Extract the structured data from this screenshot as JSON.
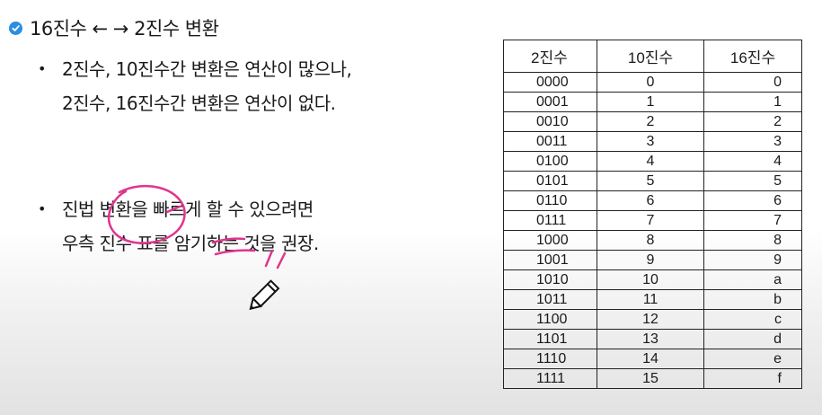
{
  "title": "16진수 ← → 2진수 변환",
  "bullets": [
    {
      "lines": [
        "2진수, 10진수간 변환은 연산이 많으나,",
        "2진수, 16진수간 변환은 연산이 없다."
      ]
    },
    {
      "lines": [
        "진법 변환을 빠르게 할 수 있으려면",
        "우측 진수 표를 암기하는 것을 권장."
      ]
    }
  ],
  "table": {
    "headers": [
      "2진수",
      "10진수",
      "16진수"
    ],
    "rows": [
      [
        "0000",
        "0",
        "0"
      ],
      [
        "0001",
        "1",
        "1"
      ],
      [
        "0010",
        "2",
        "2"
      ],
      [
        "0011",
        "3",
        "3"
      ],
      [
        "0100",
        "4",
        "4"
      ],
      [
        "0101",
        "5",
        "5"
      ],
      [
        "0110",
        "6",
        "6"
      ],
      [
        "0111",
        "7",
        "7"
      ],
      [
        "1000",
        "8",
        "8"
      ],
      [
        "1001",
        "9",
        "9"
      ],
      [
        "1010",
        "10",
        "a"
      ],
      [
        "1011",
        "11",
        "b"
      ],
      [
        "1100",
        "12",
        "c"
      ],
      [
        "1101",
        "13",
        "d"
      ],
      [
        "1110",
        "14",
        "e"
      ],
      [
        "1111",
        "15",
        "f"
      ]
    ]
  },
  "colors": {
    "accent": "#2b8ee0",
    "ink": "#e0358f"
  },
  "icons": {
    "title": "check-circle-icon",
    "cursor": "pencil-icon"
  }
}
